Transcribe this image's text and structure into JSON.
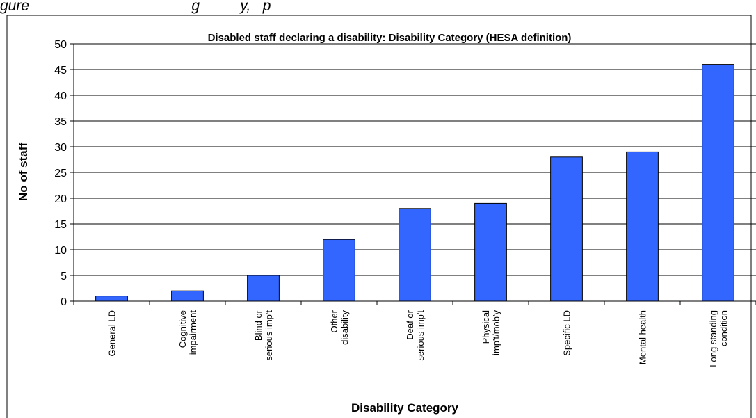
{
  "caption": "gure                                        g          y,   p",
  "chart_data": {
    "type": "bar",
    "title": "Disabled staff declaring a disability: Disability Category (HESA definition)",
    "xlabel": "Disability Category",
    "ylabel": "No of staff",
    "ylim": [
      0,
      50
    ],
    "yticks": [
      0,
      5,
      10,
      15,
      20,
      25,
      30,
      35,
      40,
      45,
      50
    ],
    "grid": "horizontal",
    "legend": "none",
    "bar_color": "#3366ff",
    "categories": [
      [
        "General LD"
      ],
      [
        "Cognitive",
        "impairment"
      ],
      [
        "Blind or",
        "serious imp't"
      ],
      [
        "Other",
        "disability"
      ],
      [
        "Deaf or",
        "serious imp't"
      ],
      [
        "Physical",
        "imp't/mob'y"
      ],
      [
        "Specific LD"
      ],
      [
        "Mental health"
      ],
      [
        "Long standing",
        "condition"
      ]
    ],
    "values": [
      1,
      2,
      5,
      12,
      18,
      19,
      28,
      29,
      46
    ]
  }
}
